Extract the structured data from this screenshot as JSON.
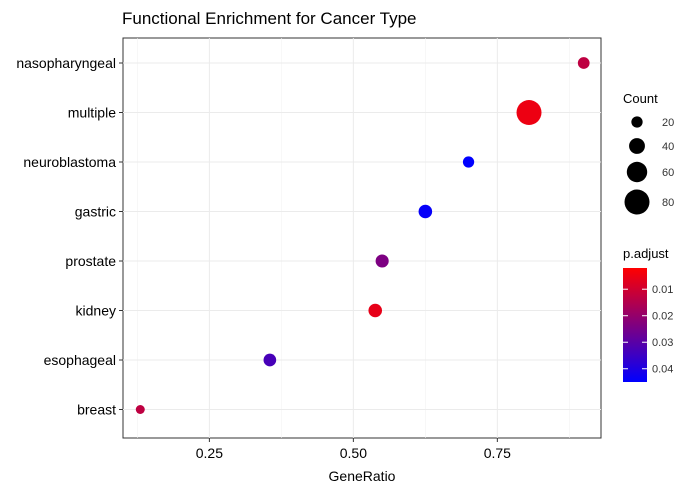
{
  "chart_data": {
    "type": "scatter",
    "title": "Functional Enrichment for Cancer Type",
    "xlabel": "GeneRatio",
    "ylabel": "",
    "xlim": [
      0.1,
      0.93
    ],
    "x_ticks": [
      0.25,
      0.5,
      0.75
    ],
    "x_tick_labels": [
      "0.25",
      "0.50",
      "0.75"
    ],
    "categories": [
      "nasopharyngeal",
      "multiple",
      "neuroblastoma",
      "gastric",
      "prostate",
      "kidney",
      "esophageal",
      "breast"
    ],
    "points": [
      {
        "category": "nasopharyngeal",
        "x": 0.9,
        "count": 22,
        "p_adjust": 0.013
      },
      {
        "category": "multiple",
        "x": 0.805,
        "count": 80,
        "p_adjust": 0.005
      },
      {
        "category": "neuroblastoma",
        "x": 0.7,
        "count": 20,
        "p_adjust": 0.045
      },
      {
        "category": "gastric",
        "x": 0.625,
        "count": 30,
        "p_adjust": 0.044
      },
      {
        "category": "prostate",
        "x": 0.55,
        "count": 28,
        "p_adjust": 0.024
      },
      {
        "category": "kidney",
        "x": 0.538,
        "count": 30,
        "p_adjust": 0.006
      },
      {
        "category": "esophageal",
        "x": 0.355,
        "count": 26,
        "p_adjust": 0.033
      },
      {
        "category": "breast",
        "x": 0.13,
        "count": 10,
        "p_adjust": 0.013
      }
    ],
    "grid": true,
    "legend_placement": "right",
    "size_legend": {
      "title": "Count",
      "values": [
        20,
        40,
        60,
        80
      ],
      "labels": [
        "20",
        "40",
        "60",
        "80"
      ]
    },
    "color_legend": {
      "title": "p.adjust",
      "min": 0.002,
      "max": 0.045,
      "low_color": "#FF0000",
      "high_color": "#0000FF",
      "ticks": [
        0.01,
        0.02,
        0.03,
        0.04
      ],
      "tick_labels": [
        "0.01",
        "0.02",
        "0.03",
        "0.04"
      ]
    }
  }
}
